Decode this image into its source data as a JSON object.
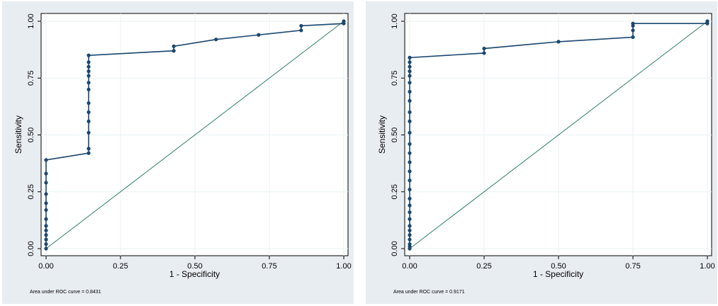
{
  "colors": {
    "background": "#e8edf2",
    "plot_area": "#ffffff",
    "grid": "#eaf2f3",
    "roc_curve": "#1a476f",
    "reference_line": "#2e7d6b"
  },
  "chart_data": [
    {
      "type": "line",
      "title": "",
      "xlabel": "1 - Specificity",
      "ylabel": "Sensitivity",
      "xlim": [
        0,
        1
      ],
      "ylim": [
        0,
        1
      ],
      "xticks": [
        "0.00",
        "0.25",
        "0.50",
        "0.75",
        "1.00"
      ],
      "yticks": [
        "0.00",
        "0.25",
        "0.50",
        "0.75",
        "1.00"
      ],
      "grid": true,
      "note": "Area under ROC curve = 0.8431",
      "series": [
        {
          "points": [
            [
              0,
              0
            ],
            [
              0,
              0.02
            ],
            [
              0,
              0.04
            ],
            [
              0,
              0.06
            ],
            [
              0,
              0.08
            ],
            [
              0,
              0.1
            ],
            [
              0,
              0.13
            ],
            [
              0,
              0.17
            ],
            [
              0,
              0.2
            ],
            [
              0,
              0.24
            ],
            [
              0,
              0.29
            ],
            [
              0,
              0.33
            ],
            [
              0,
              0.39
            ],
            [
              0.143,
              0.42
            ],
            [
              0.143,
              0.44
            ],
            [
              0.143,
              0.51
            ],
            [
              0.143,
              0.56
            ],
            [
              0.143,
              0.6
            ],
            [
              0.143,
              0.64
            ],
            [
              0.143,
              0.7
            ],
            [
              0.143,
              0.73
            ],
            [
              0.143,
              0.76
            ],
            [
              0.143,
              0.78
            ],
            [
              0.143,
              0.8
            ],
            [
              0.143,
              0.82
            ],
            [
              0.143,
              0.85
            ],
            [
              0.429,
              0.87
            ],
            [
              0.429,
              0.89
            ],
            [
              0.571,
              0.92
            ],
            [
              0.714,
              0.94
            ],
            [
              0.857,
              0.96
            ],
            [
              0.857,
              0.98
            ],
            [
              1.0,
              0.99
            ],
            [
              1.0,
              1.0
            ]
          ]
        },
        {
          "points": [
            [
              0,
              0
            ],
            [
              1,
              1
            ]
          ]
        }
      ]
    },
    {
      "type": "line",
      "title": "",
      "xlabel": "1 - Specificity",
      "ylabel": "Sensitivity",
      "xlim": [
        0,
        1
      ],
      "ylim": [
        0,
        1
      ],
      "xticks": [
        "0.00",
        "0.25",
        "0.50",
        "0.75",
        "1.00"
      ],
      "yticks": [
        "0.00",
        "0.25",
        "0.50",
        "0.75",
        "1.00"
      ],
      "grid": true,
      "note": "Area under ROC curve = 0.9171",
      "series": [
        {
          "points": [
            [
              0,
              0
            ],
            [
              0,
              0.01
            ],
            [
              0,
              0.02
            ],
            [
              0,
              0.04
            ],
            [
              0,
              0.06
            ],
            [
              0,
              0.08
            ],
            [
              0,
              0.1
            ],
            [
              0,
              0.13
            ],
            [
              0,
              0.16
            ],
            [
              0,
              0.19
            ],
            [
              0,
              0.22
            ],
            [
              0,
              0.26
            ],
            [
              0,
              0.3
            ],
            [
              0,
              0.34
            ],
            [
              0,
              0.38
            ],
            [
              0,
              0.42
            ],
            [
              0,
              0.46
            ],
            [
              0,
              0.51
            ],
            [
              0,
              0.56
            ],
            [
              0,
              0.6
            ],
            [
              0,
              0.65
            ],
            [
              0,
              0.69
            ],
            [
              0,
              0.73
            ],
            [
              0,
              0.76
            ],
            [
              0,
              0.78
            ],
            [
              0,
              0.8
            ],
            [
              0,
              0.82
            ],
            [
              0,
              0.84
            ],
            [
              0.25,
              0.86
            ],
            [
              0.25,
              0.88
            ],
            [
              0.5,
              0.91
            ],
            [
              0.75,
              0.93
            ],
            [
              0.75,
              0.96
            ],
            [
              0.75,
              0.98
            ],
            [
              0.75,
              0.99
            ],
            [
              1.0,
              0.99
            ],
            [
              1.0,
              1.0
            ]
          ]
        },
        {
          "points": [
            [
              0,
              0
            ],
            [
              1,
              1
            ]
          ]
        }
      ]
    }
  ]
}
